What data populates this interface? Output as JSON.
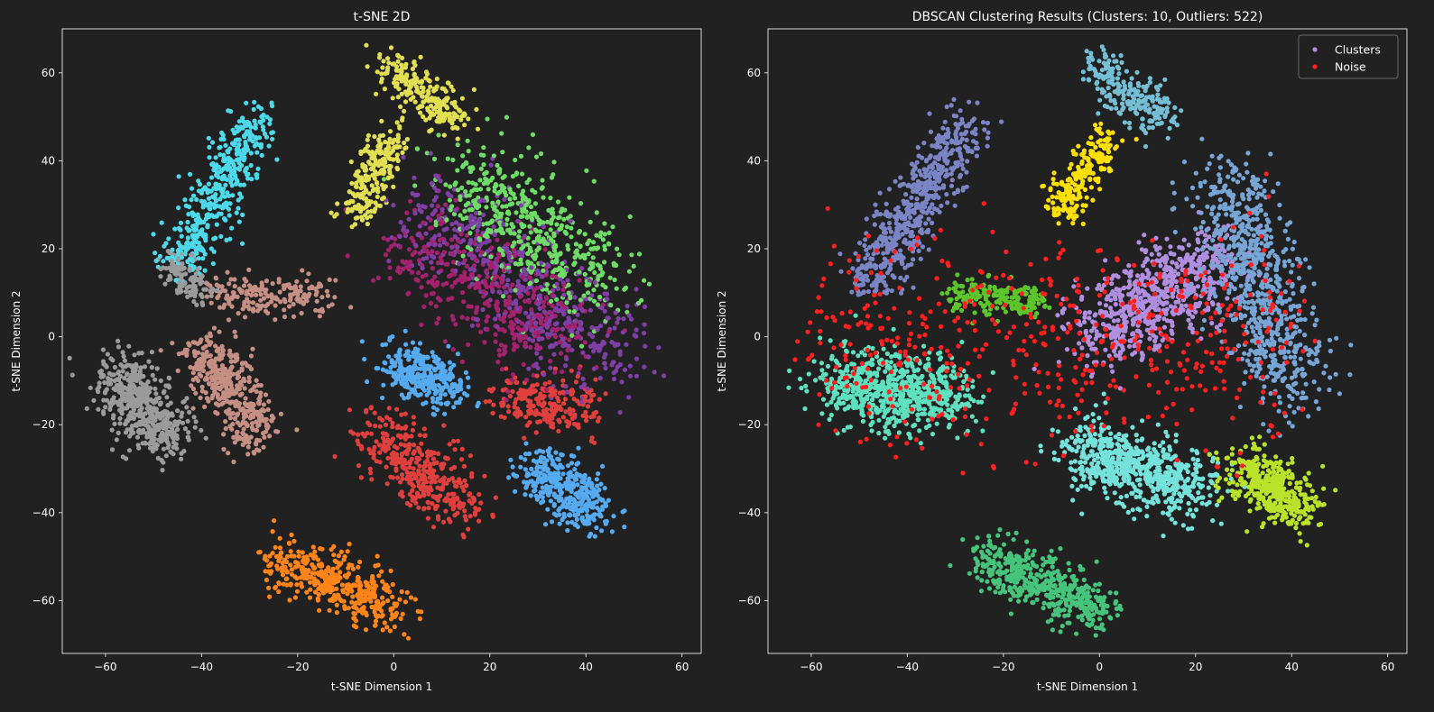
{
  "chart_data": [
    {
      "type": "scatter",
      "title": "t-SNE 2D",
      "xlabel": "t-SNE Dimension 1",
      "ylabel": "t-SNE Dimension 2",
      "xlim": [
        -69,
        64
      ],
      "ylim": [
        -72,
        70
      ],
      "xticks": [
        -60,
        -40,
        -20,
        0,
        20,
        40,
        60
      ],
      "yticks": [
        -60,
        -40,
        -20,
        0,
        20,
        40,
        60
      ],
      "grid": false,
      "legend": null,
      "clusters": [
        {
          "color": "#4dd9ea",
          "points": 420,
          "shape": [
            [
              -44,
              17
            ],
            [
              -28,
              50
            ]
          ],
          "spread": 4.5
        },
        {
          "color": "#9b9b9b",
          "points": 500,
          "shape": [
            [
              -57,
              -8
            ],
            [
              -47,
              -24
            ]
          ],
          "spread": 6
        },
        {
          "color": "#c58f84",
          "points": 420,
          "shape": [
            [
              -40,
              -2
            ],
            [
              -28,
              -22
            ]
          ],
          "spread": 5
        },
        {
          "color": "#c58f84",
          "points": 180,
          "shape": [
            [
              -37,
              10
            ],
            [
              -14,
              9
            ]
          ],
          "spread": 3.5
        },
        {
          "color": "#9b9b9b",
          "points": 120,
          "shape": [
            [
              -46,
              17
            ],
            [
              -40,
              9
            ]
          ],
          "spread": 3
        },
        {
          "color": "#e2df53",
          "points": 220,
          "shape": [
            [
              -1,
              62
            ],
            [
              13,
              49
            ]
          ],
          "spread": 4
        },
        {
          "color": "#e2df53",
          "points": 220,
          "shape": [
            [
              -8,
              28
            ],
            [
              0,
              46
            ]
          ],
          "spread": 3.5
        },
        {
          "color": "#6fdc68",
          "points": 520,
          "shape": [
            [
              14,
              36
            ],
            [
              44,
              12
            ]
          ],
          "spread": 10
        },
        {
          "color": "#7f3fa6",
          "points": 520,
          "shape": [
            [
              8,
              30
            ],
            [
              46,
              -6
            ]
          ],
          "spread": 10
        },
        {
          "color": "#a4216e",
          "points": 420,
          "shape": [
            [
              4,
              22
            ],
            [
              36,
              -2
            ]
          ],
          "spread": 10
        },
        {
          "color": "#55aaf0",
          "points": 320,
          "shape": [
            [
              0,
              -6
            ],
            [
              12,
              -12
            ]
          ],
          "spread": 5
        },
        {
          "color": "#55aaf0",
          "points": 380,
          "shape": [
            [
              30,
              -30
            ],
            [
              42,
              -40
            ]
          ],
          "spread": 5
        },
        {
          "color": "#e0403d",
          "points": 380,
          "shape": [
            [
              -4,
              -22
            ],
            [
              14,
              -38
            ]
          ],
          "spread": 6
        },
        {
          "color": "#e0403d",
          "points": 220,
          "shape": [
            [
              24,
              -14
            ],
            [
              40,
              -16
            ]
          ],
          "spread": 5
        },
        {
          "color": "#ff8419",
          "points": 420,
          "shape": [
            [
              -24,
              -50
            ],
            [
              0,
              -62
            ]
          ],
          "spread": 5
        }
      ]
    },
    {
      "type": "scatter",
      "title": "DBSCAN Clustering Results (Clusters: 10, Outliers: 522)",
      "xlabel": "t-SNE Dimension 1",
      "ylabel": "t-SNE Dimension 2",
      "xlim": [
        -69,
        64
      ],
      "ylim": [
        -72,
        70
      ],
      "xticks": [
        -60,
        -40,
        -20,
        0,
        20,
        40,
        60
      ],
      "yticks": [
        -60,
        -40,
        -20,
        0,
        20,
        40,
        60
      ],
      "grid": false,
      "legend": {
        "placement": "top-right",
        "entries": [
          {
            "label": "Clusters",
            "color": "#b08ee0"
          },
          {
            "label": "Noise",
            "color": "#ff2020"
          }
        ]
      },
      "clusters": [
        {
          "color": "#7b85c6",
          "points": 560,
          "shape": [
            [
              -48,
              12
            ],
            [
              -28,
              48
            ]
          ],
          "spread": 5
        },
        {
          "color": "#5fe0bf",
          "points": 700,
          "shape": [
            [
              -55,
              -10
            ],
            [
              -30,
              -14
            ]
          ],
          "spread": 7
        },
        {
          "color": "#75bfd6",
          "points": 220,
          "shape": [
            [
              -1,
              61
            ],
            [
              14,
              49
            ]
          ],
          "spread": 4
        },
        {
          "color": "#ffe000",
          "points": 220,
          "shape": [
            [
              -8,
              28
            ],
            [
              1,
              45
            ]
          ],
          "spread": 3.5
        },
        {
          "color": "#5cc52c",
          "points": 200,
          "shape": [
            [
              -30,
              10
            ],
            [
              -12,
              8
            ]
          ],
          "spread": 3
        },
        {
          "color": "#b08ee0",
          "points": 700,
          "shape": [
            [
              0,
              0
            ],
            [
              24,
              18
            ]
          ],
          "spread": 8
        },
        {
          "color": "#77a5d6",
          "points": 750,
          "shape": [
            [
              26,
              36
            ],
            [
              40,
              -12
            ]
          ],
          "spread": 8
        },
        {
          "color": "#75e2dc",
          "points": 650,
          "shape": [
            [
              -4,
              -26
            ],
            [
              20,
              -34
            ]
          ],
          "spread": 6.5
        },
        {
          "color": "#b9e32a",
          "points": 420,
          "shape": [
            [
              30,
              -30
            ],
            [
              42,
              -40
            ]
          ],
          "spread": 5
        },
        {
          "color": "#46c47c",
          "points": 480,
          "shape": [
            [
              -24,
              -50
            ],
            [
              0,
              -62
            ]
          ],
          "spread": 5
        },
        {
          "color": "#ff2020",
          "points": 522,
          "shape": [
            [
              -60,
              -14
            ],
            [
              40,
              10
            ]
          ],
          "spread": 9,
          "noise": true
        }
      ]
    }
  ]
}
